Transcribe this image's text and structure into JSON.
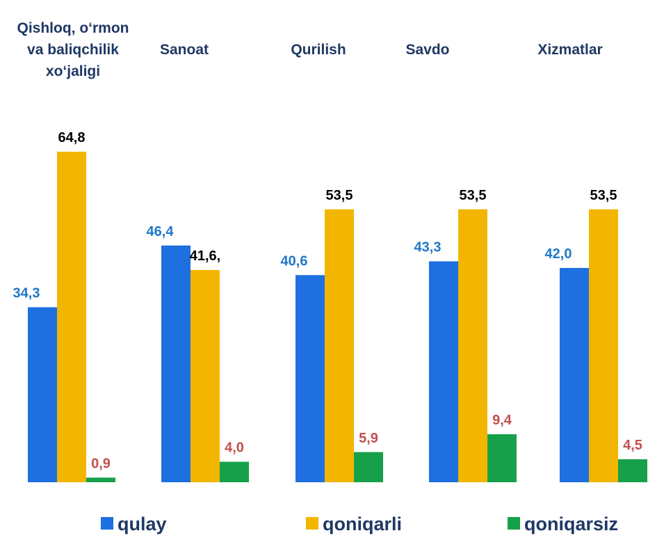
{
  "chart_data": {
    "type": "bar",
    "categories": [
      "Qishloq, o‘rmon\nva baliqchilik\nxo‘jaligi",
      "Sanoat",
      "Qurilish",
      "Savdo",
      "Xizmatlar"
    ],
    "series": [
      {
        "name": "qulay",
        "color": "#1e6fe0",
        "label_color": "#1f78c8",
        "values": [
          34.3,
          46.4,
          40.6,
          43.3,
          42.0
        ],
        "value_labels": [
          "34,3",
          "46,4",
          "40,6",
          "43,3",
          "42,0"
        ]
      },
      {
        "name": "qoniqarli",
        "color": "#f2b600",
        "label_color": "#000000",
        "values": [
          64.8,
          41.6,
          53.5,
          53.5,
          53.5
        ],
        "value_labels": [
          "64,8",
          "41,6,",
          "53,5",
          "53,5",
          "53,5"
        ]
      },
      {
        "name": "qoniqarsiz",
        "color": "#17a04a",
        "label_color": "#c0504d",
        "values": [
          0.9,
          4.0,
          5.9,
          9.4,
          4.5
        ],
        "value_labels": [
          "0,9",
          "4,0",
          "5,9",
          "9,4",
          "4,5"
        ]
      }
    ]
  }
}
